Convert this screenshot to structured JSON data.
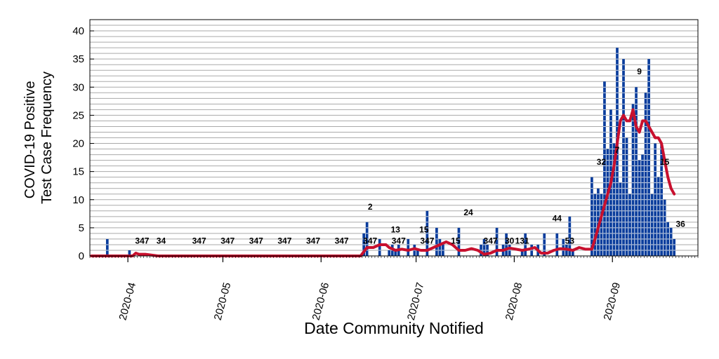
{
  "chart_data": {
    "type": "bar",
    "xlabel": "Date Community Notified",
    "ylabel_lines": [
      "COVID-19 Positive",
      "Test Case Frequency"
    ],
    "ylim": [
      0,
      42
    ],
    "yticks": [
      0,
      5,
      10,
      15,
      20,
      25,
      30,
      35,
      40
    ],
    "ygrid_step": 1,
    "grid": true,
    "xlim": [
      "2020-03-20",
      "2020-09-28"
    ],
    "xticks": [
      "2020-04-01",
      "2020-05-01",
      "2020-06-01",
      "2020-07-01",
      "2020-08-01",
      "2020-09-01"
    ],
    "xtick_labels": [
      "2020-04",
      "2020-05",
      "2020-06",
      "2020-07",
      "2020-08",
      "2020-09"
    ],
    "colors": {
      "bars": "#0a3d9c",
      "line": "#c8102e",
      "grid": "#aaaaaa"
    },
    "series": [
      {
        "kind": "bar",
        "dates": [
          "2020-03-25",
          "2020-04-01",
          "2020-06-14",
          "2020-06-15",
          "2020-06-19",
          "2020-06-22",
          "2020-06-23",
          "2020-06-24",
          "2020-06-25",
          "2020-06-28",
          "2020-06-30",
          "2020-07-01",
          "2020-07-04",
          "2020-07-07",
          "2020-07-08",
          "2020-07-09",
          "2020-07-14",
          "2020-07-21",
          "2020-07-22",
          "2020-07-23",
          "2020-07-26",
          "2020-07-28",
          "2020-07-29",
          "2020-07-30",
          "2020-08-03",
          "2020-08-04",
          "2020-08-06",
          "2020-08-08",
          "2020-08-10",
          "2020-08-14",
          "2020-08-16",
          "2020-08-17",
          "2020-08-18",
          "2020-08-19",
          "2020-08-25",
          "2020-08-26",
          "2020-08-27",
          "2020-08-28",
          "2020-08-29",
          "2020-08-30",
          "2020-08-31",
          "2020-09-01",
          "2020-09-02",
          "2020-09-03",
          "2020-09-04",
          "2020-09-05",
          "2020-09-06",
          "2020-09-07",
          "2020-09-08",
          "2020-09-09",
          "2020-09-10",
          "2020-09-11",
          "2020-09-12",
          "2020-09-13",
          "2020-09-14",
          "2020-09-15",
          "2020-09-16",
          "2020-09-17",
          "2020-09-18",
          "2020-09-19",
          "2020-09-20"
        ],
        "values": [
          3,
          1,
          4,
          6,
          3,
          1,
          2,
          1,
          2,
          3,
          2,
          1,
          8,
          5,
          3,
          2,
          5,
          2,
          3,
          2,
          5,
          2,
          4,
          2,
          1,
          4,
          2,
          2,
          4,
          4,
          3,
          2,
          7,
          1,
          14,
          11,
          12,
          11,
          31,
          19,
          26,
          20,
          37,
          13,
          35,
          21,
          11,
          27,
          30,
          17,
          18,
          29,
          35,
          11,
          20,
          14,
          20,
          10,
          6,
          5,
          3
        ]
      },
      {
        "kind": "line",
        "dates": [
          "2020-03-20",
          "2020-04-02",
          "2020-04-03",
          "2020-04-04",
          "2020-04-06",
          "2020-04-10",
          "2020-06-13",
          "2020-06-15",
          "2020-06-17",
          "2020-06-19",
          "2020-06-21",
          "2020-06-22",
          "2020-06-24",
          "2020-06-26",
          "2020-06-28",
          "2020-06-30",
          "2020-07-02",
          "2020-07-04",
          "2020-07-06",
          "2020-07-08",
          "2020-07-10",
          "2020-07-12",
          "2020-07-14",
          "2020-07-16",
          "2020-07-18",
          "2020-07-20",
          "2020-07-22",
          "2020-07-24",
          "2020-07-26",
          "2020-07-28",
          "2020-07-30",
          "2020-08-01",
          "2020-08-03",
          "2020-08-05",
          "2020-08-07",
          "2020-08-09",
          "2020-08-11",
          "2020-08-13",
          "2020-08-15",
          "2020-08-17",
          "2020-08-19",
          "2020-08-21",
          "2020-08-23",
          "2020-08-25",
          "2020-08-26",
          "2020-08-27",
          "2020-08-28",
          "2020-08-29",
          "2020-08-30",
          "2020-08-31",
          "2020-09-01",
          "2020-09-02",
          "2020-09-03",
          "2020-09-04",
          "2020-09-05",
          "2020-09-06",
          "2020-09-07",
          "2020-09-08",
          "2020-09-09",
          "2020-09-10",
          "2020-09-11",
          "2020-09-12",
          "2020-09-13",
          "2020-09-14",
          "2020-09-15",
          "2020-09-16",
          "2020-09-17",
          "2020-09-18",
          "2020-09-19",
          "2020-09-20"
        ],
        "values": [
          0,
          0,
          0.5,
          0.3,
          0.3,
          0,
          0,
          1.5,
          1.5,
          2,
          2,
          1.5,
          1,
          1.2,
          1,
          1.3,
          1,
          1,
          1.5,
          2,
          2.5,
          2,
          1,
          1,
          1.3,
          1,
          0.3,
          0.5,
          1,
          1,
          1.4,
          1.2,
          1,
          1.2,
          1.5,
          0.5,
          0.5,
          1,
          1.3,
          1.2,
          1,
          1.5,
          1.2,
          1.2,
          3,
          5,
          7,
          9,
          11,
          13,
          16,
          20,
          24,
          25,
          24,
          24,
          26,
          23,
          22,
          24,
          24,
          23,
          22,
          21,
          21,
          20,
          17,
          14,
          12,
          11
        ]
      }
    ],
    "annotations": [
      {
        "date": "2020-04-05",
        "y": 2.2,
        "text": "347"
      },
      {
        "date": "2020-04-11",
        "y": 2.2,
        "text": "34"
      },
      {
        "date": "2020-04-23",
        "y": 2.2,
        "text": "347"
      },
      {
        "date": "2020-05-02",
        "y": 2.2,
        "text": "347"
      },
      {
        "date": "2020-05-11",
        "y": 2.2,
        "text": "347"
      },
      {
        "date": "2020-05-20",
        "y": 2.2,
        "text": "347"
      },
      {
        "date": "2020-05-29",
        "y": 2.2,
        "text": "347"
      },
      {
        "date": "2020-06-07",
        "y": 2.2,
        "text": "347"
      },
      {
        "date": "2020-06-16",
        "y": 2.2,
        "text": "347"
      },
      {
        "date": "2020-06-25",
        "y": 2.2,
        "text": "347"
      },
      {
        "date": "2020-07-04",
        "y": 2.2,
        "text": "347"
      },
      {
        "date": "2020-06-16",
        "y": 8.2,
        "text": "2"
      },
      {
        "date": "2020-06-24",
        "y": 4.2,
        "text": "13"
      },
      {
        "date": "2020-07-03",
        "y": 4.2,
        "text": "15"
      },
      {
        "date": "2020-07-13",
        "y": 2.2,
        "text": "15"
      },
      {
        "date": "2020-07-17",
        "y": 7.2,
        "text": "24"
      },
      {
        "date": "2020-07-24",
        "y": 2.2,
        "text": "347"
      },
      {
        "date": "2020-07-30",
        "y": 2.2,
        "text": "30"
      },
      {
        "date": "2020-08-03",
        "y": 2.2,
        "text": "131"
      },
      {
        "date": "2020-08-14",
        "y": 6.2,
        "text": "44"
      },
      {
        "date": "2020-08-18",
        "y": 2.2,
        "text": "53"
      },
      {
        "date": "2020-08-28",
        "y": 16.2,
        "text": "32"
      },
      {
        "date": "2020-09-02",
        "y": 18.3,
        "text": "7"
      },
      {
        "date": "2020-09-09",
        "y": 32.3,
        "text": "9"
      },
      {
        "date": "2020-09-17",
        "y": 16.2,
        "text": "15"
      },
      {
        "date": "2020-09-22",
        "y": 5.2,
        "text": "36"
      }
    ]
  }
}
